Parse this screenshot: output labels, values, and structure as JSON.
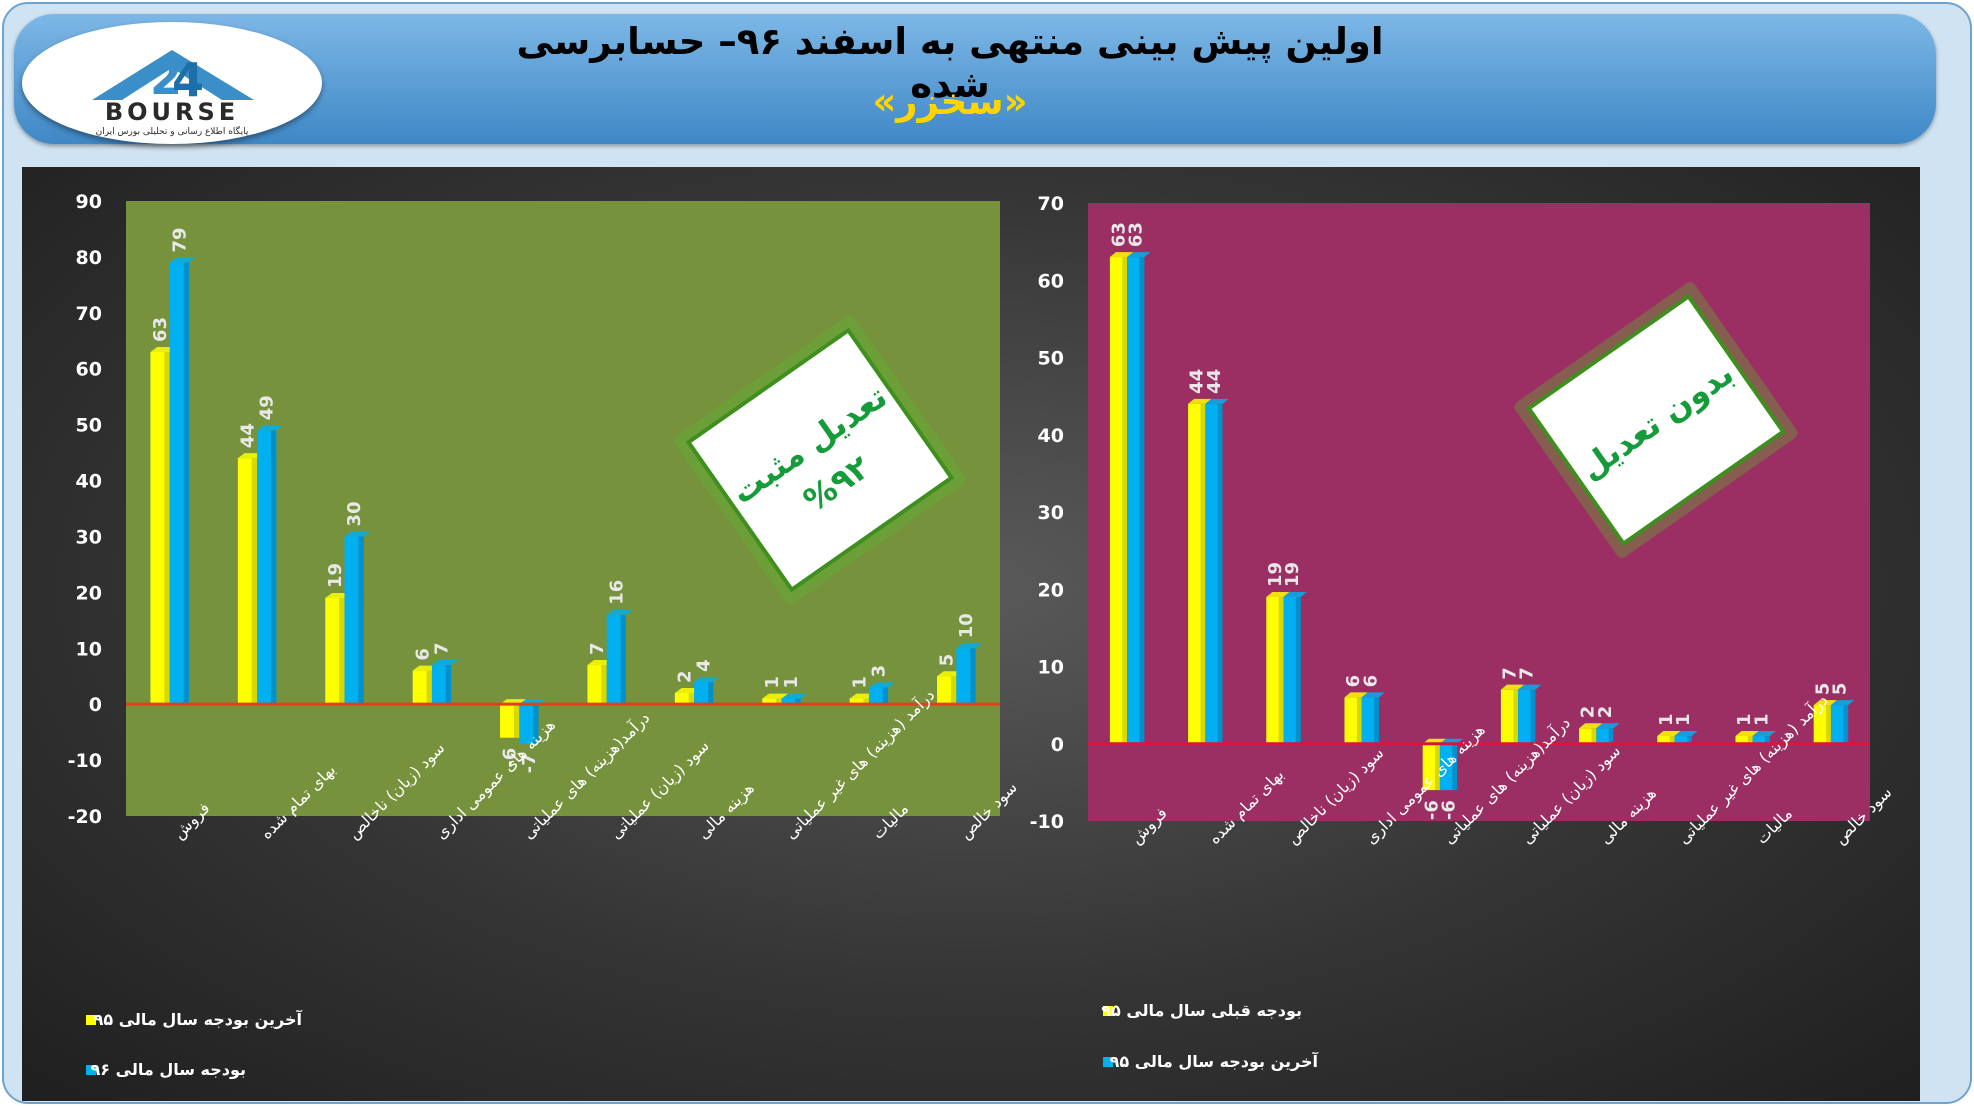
{
  "header": {
    "title": "اولین پیش بینی منتهی به اسفند ۹۶– حسابرسی شده",
    "subtitle": "«سخزر»",
    "logo_text": "BOURSE",
    "logo_caption": "پایگاه اطلاع رسانی و تحلیلی بورس ایران"
  },
  "colors": {
    "yellow": "#ffff00",
    "cyan": "#00b0f0",
    "zero_line": "#e0401a",
    "left_bg": "#76923c",
    "right_bg": "#9b2f63"
  },
  "chart_data": [
    {
      "type": "bar",
      "categories": [
        "فروش",
        "بهای تمام شده",
        "سود (زیان) ناخالص",
        "هزینه های عمومی اداری",
        "درآمد(هزینه) های عملیاتی",
        "سود (زیان) عملیاتی",
        "هزینه مالی",
        "درآمد (هزینه) های غیر عملیاتی",
        "مالیات",
        "سود خالص"
      ],
      "series": [
        {
          "name": "آخرین بودجه سال مالی ۹۵",
          "values": [
            63,
            44,
            19,
            6,
            -6,
            7,
            2,
            1,
            1,
            5
          ]
        },
        {
          "name": "بودجه سال مالی ۹۶",
          "values": [
            79,
            49,
            30,
            7,
            -7,
            16,
            4,
            1,
            3,
            10
          ]
        }
      ],
      "ylim": [
        -20,
        90
      ],
      "ticks": [
        -20,
        -10,
        0,
        10,
        20,
        30,
        40,
        50,
        60,
        70,
        80,
        90
      ],
      "badge": {
        "line1": "تعدیل مثبت",
        "line2": "%۹۲"
      },
      "legend_position": "bottom-left"
    },
    {
      "type": "bar",
      "categories": [
        "فروش",
        "بهای تمام شده",
        "سود (زیان) ناخالص",
        "هزینه های عمومی اداری",
        "درآمد(هزینه) های عملیاتی",
        "سود (زیان) عملیاتی",
        "هزینه مالی",
        "درآمد (هزینه) های غیر عملیاتی",
        "مالیات",
        "سود خالص"
      ],
      "series": [
        {
          "name": "بودجه قبلی سال مالی ۹۵",
          "values": [
            63,
            44,
            19,
            6,
            -6,
            7,
            2,
            1,
            1,
            5
          ]
        },
        {
          "name": "آخرین بودجه سال مالی ۹۵",
          "values": [
            63,
            44,
            19,
            6,
            -6,
            7,
            2,
            1,
            1,
            5
          ]
        }
      ],
      "ylim": [
        -10,
        70
      ],
      "ticks": [
        -10,
        0,
        10,
        20,
        30,
        40,
        50,
        60,
        70
      ],
      "badge": {
        "line1": "بدون تعدیل",
        "line2": ""
      },
      "legend_position": "bottom-left"
    }
  ]
}
